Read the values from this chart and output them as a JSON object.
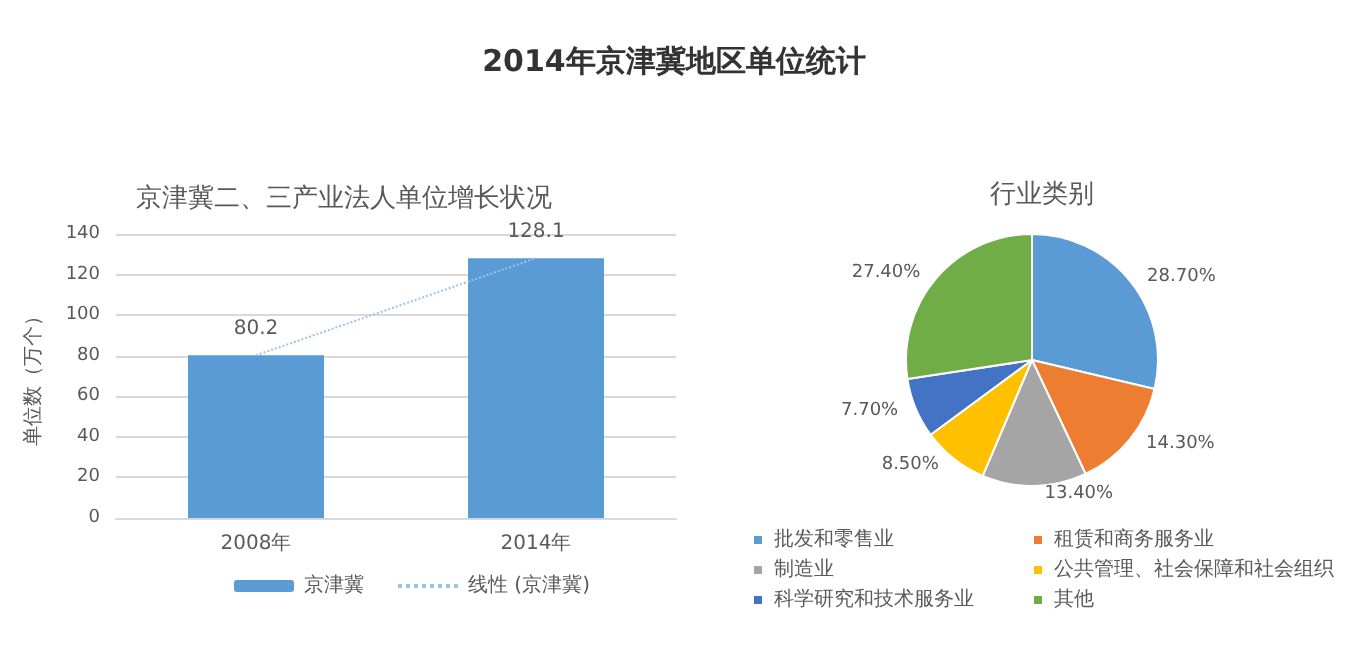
{
  "chart_data": [
    {
      "type": "bar",
      "title": "2014年京津冀地区单位统计",
      "subtitle": "京津冀二、三产业法人单位增长状况",
      "ylabel": "单位数（万个）",
      "categories": [
        "2008年",
        "2014年"
      ],
      "series": [
        {
          "name": "京津冀",
          "color": "#5b9bd5",
          "values": [
            80.2,
            128.1
          ],
          "value_labels": [
            "80.2",
            "128.1"
          ]
        },
        {
          "name": "线性 (京津冀)",
          "type": "line",
          "color": "#9dc3e6",
          "values": [
            80.2,
            128.1
          ],
          "line_style": "dotted",
          "marker": "none"
        }
      ],
      "ylim": [
        0,
        140
      ],
      "yticks": [
        0,
        20,
        40,
        60,
        80,
        100,
        120,
        140
      ],
      "grid": "y",
      "legend": "bottom"
    },
    {
      "type": "pie",
      "title": "行业类别",
      "categories": [
        "批发和零售业",
        "租赁和商务服务业",
        "制造业",
        "公共管理、社会保障和社会组织",
        "科学研究和技术服务业",
        "其他"
      ],
      "values": [
        28.7,
        14.3,
        13.4,
        8.5,
        7.7,
        27.4
      ],
      "value_labels": [
        "28.70%",
        "14.30%",
        "13.40%",
        "8.50%",
        "7.70%",
        "27.40%"
      ],
      "colors": [
        "#5b9bd5",
        "#ed7d31",
        "#a5a5a5",
        "#ffc000",
        "#4472c4",
        "#70ad47"
      ],
      "legend": "bottom"
    }
  ]
}
